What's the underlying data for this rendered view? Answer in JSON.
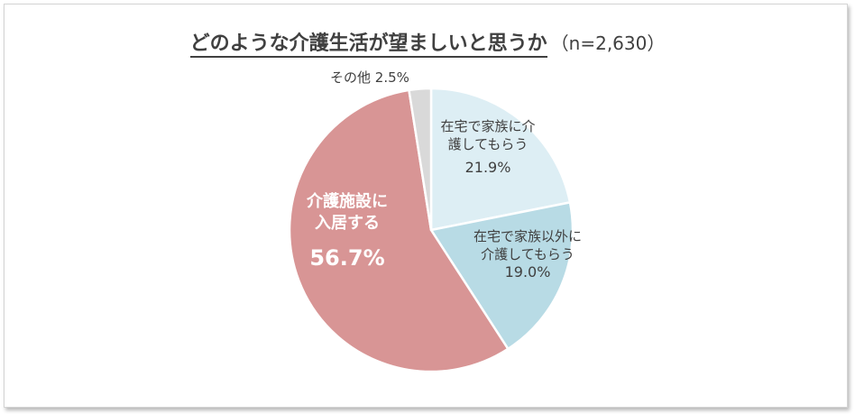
{
  "title": "どのような介護生活が望ましいと思うか",
  "sample_size": "（n=2,630）",
  "chart_data": {
    "type": "pie",
    "title": "どのような介護生活が望ましいと思うか",
    "start_angle_deg": 0,
    "direction": "clockwise",
    "slices": [
      {
        "label_lines": [
          "在宅で家族に介",
          "護してもらう"
        ],
        "value": 21.9,
        "value_label": "21.9%",
        "color": "#ddeef4"
      },
      {
        "label_lines": [
          "在宅で家族以外に",
          "介護してもらう"
        ],
        "value": 19.0,
        "value_label": "19.0%",
        "color": "#b8dbe5"
      },
      {
        "label_lines": [
          "介護施設に",
          "入居する"
        ],
        "value": 56.7,
        "value_label": "56.7%",
        "color": "#d89595"
      },
      {
        "label_lines": [
          "その他"
        ],
        "value": 2.5,
        "value_label": "2.5%",
        "color": "#d9d9d9"
      }
    ]
  }
}
